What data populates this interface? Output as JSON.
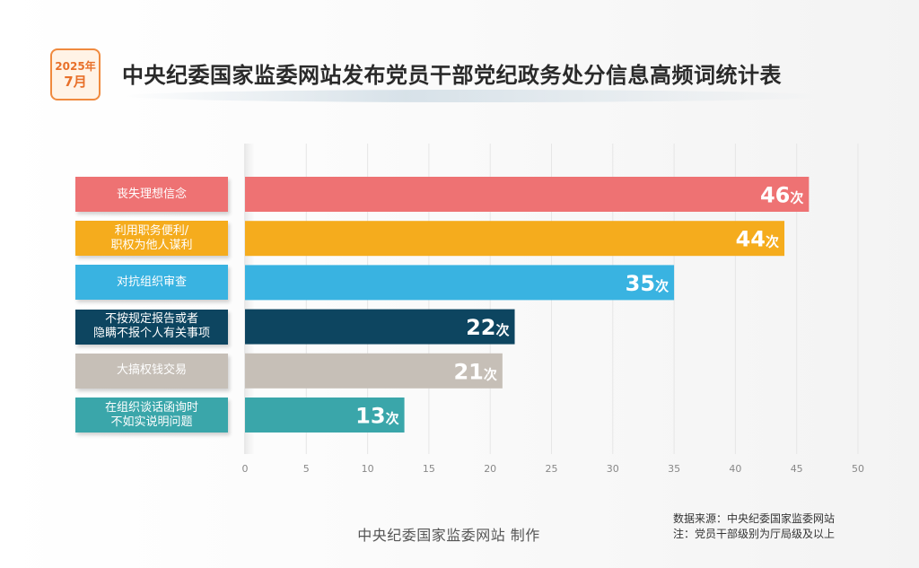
{
  "badge": {
    "year": "2025年",
    "month": "7月"
  },
  "header": {
    "title": "中央纪委国家监委网站发布党员干部党纪政务处分信息高频词统计表"
  },
  "footer": {
    "maker": "中央纪委国家监委网站 制作",
    "source": "数据来源：中央纪委国家监委网站",
    "note": "注：党员干部级别为厅局级及以上"
  },
  "chart_data": {
    "type": "bar",
    "orientation": "horizontal",
    "categories": [
      "丧失理想信念",
      "利用职务便利/\n职权为他人谋利",
      "对抗组织审查",
      "不按规定报告或者\n隐瞒不报个人有关事项",
      "大搞权钱交易",
      "在组织谈话函询时\n不如实说明问题"
    ],
    "values": [
      46,
      44,
      35,
      22,
      21,
      13
    ],
    "value_suffix": "次",
    "colors": [
      "#ee7273",
      "#f5ac1d",
      "#39b3e1",
      "#0d4560",
      "#c6bfb7",
      "#3aa6aa"
    ],
    "xlim": [
      0,
      50
    ],
    "xticks": [
      0,
      5,
      10,
      15,
      20,
      25,
      30,
      35,
      40,
      45,
      50
    ],
    "grid": true
  }
}
